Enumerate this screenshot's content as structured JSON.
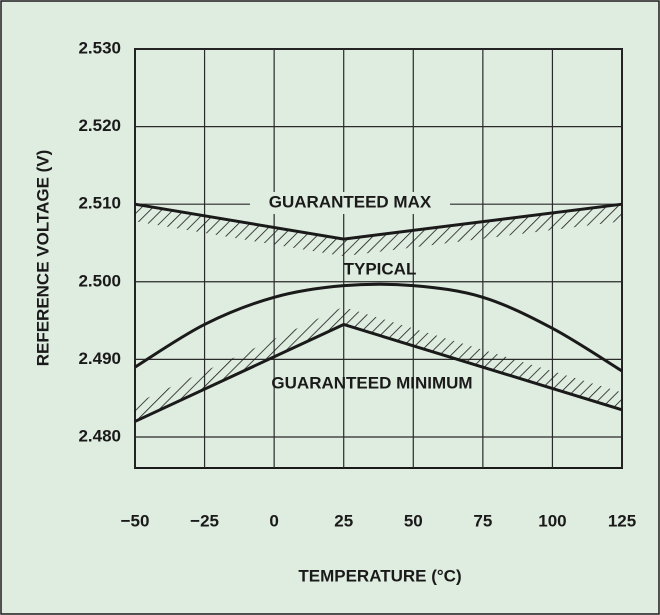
{
  "chart_data": {
    "type": "line",
    "x_label": "TEMPERATURE (°C)",
    "y_label": "REFERENCE VOLTAGE (V)",
    "x": [
      -50,
      -25,
      0,
      25,
      50,
      75,
      100,
      125
    ],
    "series": [
      {
        "name": "GUARANTEED MAX",
        "color": "#1a1a1a",
        "values": [
          2.51,
          null,
          null,
          2.5055,
          null,
          null,
          null,
          2.51
        ]
      },
      {
        "name": "TYPICAL",
        "color": "#1a1a1a",
        "values": [
          2.489,
          2.4945,
          2.498,
          2.4995,
          2.4995,
          2.498,
          2.494,
          2.4885
        ]
      },
      {
        "name": "GUARANTEED MINIMUM",
        "color": "#1a1a1a",
        "values": [
          2.482,
          null,
          null,
          2.4945,
          null,
          null,
          null,
          2.4835
        ]
      }
    ],
    "xlim": [
      -50,
      125
    ],
    "xticks": [
      {
        "value": -50,
        "label": "−50"
      },
      {
        "value": -25,
        "label": "−25"
      },
      0,
      25,
      50,
      75,
      100,
      125
    ],
    "ylim": [
      2.476,
      2.53
    ],
    "yticks": [
      {
        "value": 2.48,
        "label": "2.480"
      },
      {
        "value": 2.49,
        "label": "2.490"
      },
      {
        "value": 2.5,
        "label": "2.500"
      },
      {
        "value": 2.51,
        "label": "2.510"
      },
      {
        "value": 2.52,
        "label": "2.520"
      },
      {
        "value": 2.53,
        "label": "2.530"
      }
    ],
    "grid": true,
    "background": "#dfece0"
  }
}
